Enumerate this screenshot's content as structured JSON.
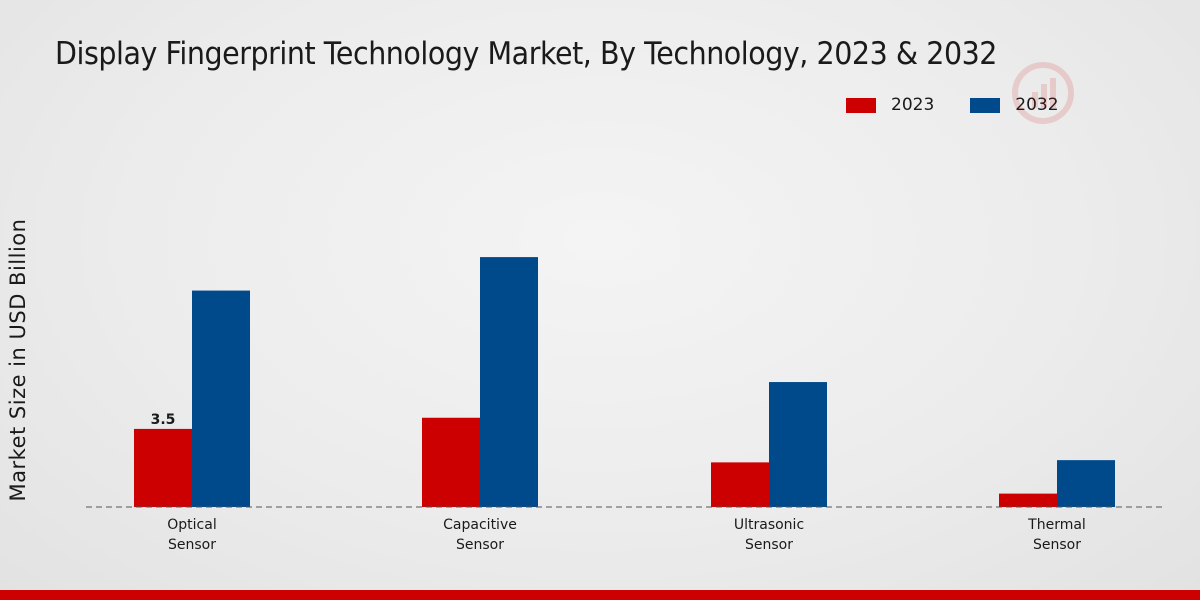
{
  "chart_data": {
    "type": "bar",
    "title": "Display Fingerprint Technology Market, By Technology, 2023 & 2032",
    "xlabel": "",
    "ylabel": "Market Size in USD Billion",
    "categories": [
      [
        "Optical",
        "Sensor"
      ],
      [
        "Capacitive",
        "Sensor"
      ],
      [
        "Ultrasonic",
        "Sensor"
      ],
      [
        "Thermal",
        "Sensor"
      ]
    ],
    "series": [
      {
        "name": "2023",
        "color": "#cc0000",
        "values": [
          3.5,
          4.0,
          2.0,
          0.6
        ]
      },
      {
        "name": "2032",
        "color": "#004a8c",
        "values": [
          9.7,
          11.2,
          5.6,
          2.1
        ]
      }
    ],
    "data_labels": [
      {
        "series": 0,
        "index": 0,
        "text": "3.5"
      }
    ],
    "ylim": [
      0,
      16
    ],
    "legend_position": "top-right"
  }
}
